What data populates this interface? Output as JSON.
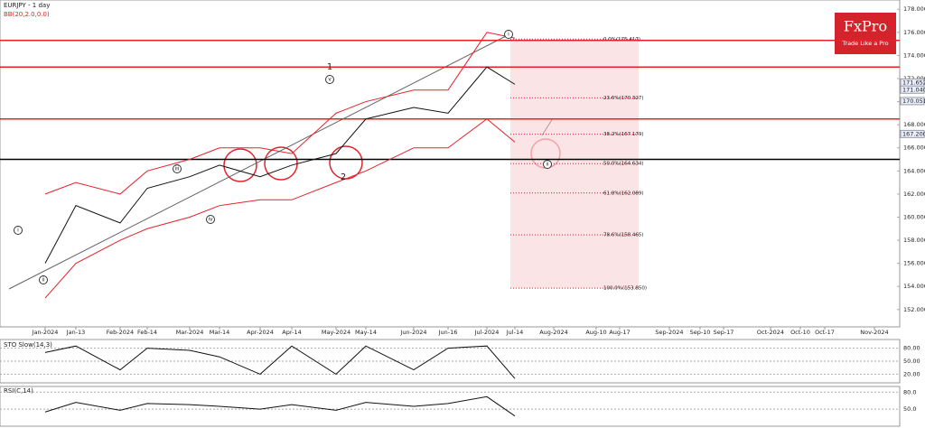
{
  "logo": {
    "brand": "FxPro",
    "tagline": "Trade Like a Pro"
  },
  "wave_labels": [
    "i",
    "ii",
    "iii",
    "iv",
    "v",
    "1",
    "2",
    "i",
    "ii"
  ],
  "chart_data": [
    {
      "type": "line",
      "title": "EURJPY - 1 day",
      "subtitle": "BB(20,2.0,0.0)",
      "categories": [
        "Jan-2024",
        "Jan-13",
        "Feb-2024",
        "Feb-14",
        "Mar-2024",
        "Mar-14",
        "Apr-2024",
        "Apr-14",
        "May-2024",
        "May-14",
        "Jun-2024",
        "Jun-16",
        "Jul-2024",
        "Jul-14",
        "Aug-2024",
        "Aug-10",
        "Aug-17",
        "Sep-2024",
        "Sep-10",
        "Sep-17",
        "Oct-2024",
        "Oct-10",
        "Oct-17",
        "Nov-2024"
      ],
      "series": [
        {
          "color": "#111111",
          "values": [
            156,
            161,
            159.5,
            162.5,
            163.5,
            164.5,
            163.5,
            164.5,
            165.5,
            168.5,
            169.5,
            169,
            173,
            171.5,
            null,
            null,
            null,
            null,
            null,
            null,
            null,
            null,
            null,
            null
          ]
        },
        {
          "color": "#e8202a",
          "values": [
            162,
            163,
            162,
            164,
            165,
            166,
            166,
            165.5,
            169,
            170,
            171,
            171,
            176,
            175.5,
            null,
            null,
            null,
            null,
            null,
            null,
            null,
            null,
            null,
            null
          ]
        },
        {
          "color": "#e8202a",
          "values": [
            153,
            156,
            158,
            159,
            160,
            161,
            161.5,
            161.5,
            163,
            164,
            166,
            166,
            168.5,
            166.5,
            null,
            null,
            null,
            null,
            null,
            null,
            null,
            null,
            null,
            null
          ]
        }
      ],
      "ylim": [
        150.5,
        178.8
      ],
      "yticks": [
        {
          "value": 152,
          "label": "152.000"
        },
        {
          "value": 154,
          "label": "154.000"
        },
        {
          "value": 156,
          "label": "156.000"
        },
        {
          "value": 158,
          "label": "158.000"
        },
        {
          "value": 160,
          "label": "160.000"
        },
        {
          "value": 162,
          "label": "162.000"
        },
        {
          "value": 164,
          "label": "164.000"
        },
        {
          "value": 166,
          "label": "166.000"
        },
        {
          "value": 168,
          "label": "168.000"
        },
        {
          "value": 170,
          "label": "170.000"
        },
        {
          "value": 172,
          "label": "172.000"
        },
        {
          "value": 174,
          "label": "174.000"
        },
        {
          "value": 176,
          "label": "176.000"
        },
        {
          "value": 178,
          "label": "178.000"
        }
      ],
      "levels": [
        {
          "value": 175.3,
          "color": "#e8202a"
        },
        {
          "value": 173,
          "color": "#e8202a"
        },
        {
          "value": 168.5,
          "color": "#e8202a"
        },
        {
          "value": 165,
          "color": "#000000"
        }
      ],
      "fib_levels": [
        {
          "value": 175.417,
          "label": "0.0%(175.417)"
        },
        {
          "value": 170.327,
          "label": "23.6%(170.327)"
        },
        {
          "value": 167.179,
          "label": "38.2%(167.179)"
        },
        {
          "value": 164.634,
          "label": "50.0%(164.634)"
        },
        {
          "value": 162.089,
          "label": "61.8%(162.089)"
        },
        {
          "value": 158.465,
          "label": "78.6%(158.465)"
        },
        {
          "value": 153.85,
          "label": "100.0%(153.850)"
        }
      ],
      "price_labels": [
        {
          "value": 171.652,
          "label": "171.652"
        },
        {
          "value": 171.04,
          "label": "171.040"
        },
        {
          "value": 170.051,
          "label": "170.051"
        },
        {
          "value": 167.2,
          "label": "167.200"
        }
      ]
    },
    {
      "type": "line",
      "title": "STO Slow(14,3)",
      "series": [
        {
          "color": "#111111",
          "values": [
            70,
            85,
            30,
            80,
            75,
            60,
            20,
            85,
            20,
            85,
            30,
            80,
            85,
            10,
            null,
            null,
            null,
            null,
            null,
            null,
            null,
            null,
            null,
            null
          ]
        }
      ],
      "ylim": [
        0,
        100
      ],
      "yticks": [
        {
          "value": 80,
          "label": "80.00"
        },
        {
          "value": 50,
          "label": "50.00"
        },
        {
          "value": 20,
          "label": "20.00"
        }
      ]
    },
    {
      "type": "line",
      "title": "RSI(C,14)",
      "series": [
        {
          "color": "#111111",
          "values": [
            45,
            62,
            48,
            60,
            58,
            55,
            50,
            58,
            48,
            62,
            55,
            60,
            72,
            38,
            null,
            null,
            null,
            null,
            null,
            null,
            null,
            null,
            null,
            null
          ]
        }
      ],
      "ylim": [
        20,
        90
      ],
      "yticks": [
        {
          "value": 80,
          "label": "80.0"
        },
        {
          "value": 50,
          "label": "50.0"
        }
      ]
    }
  ]
}
